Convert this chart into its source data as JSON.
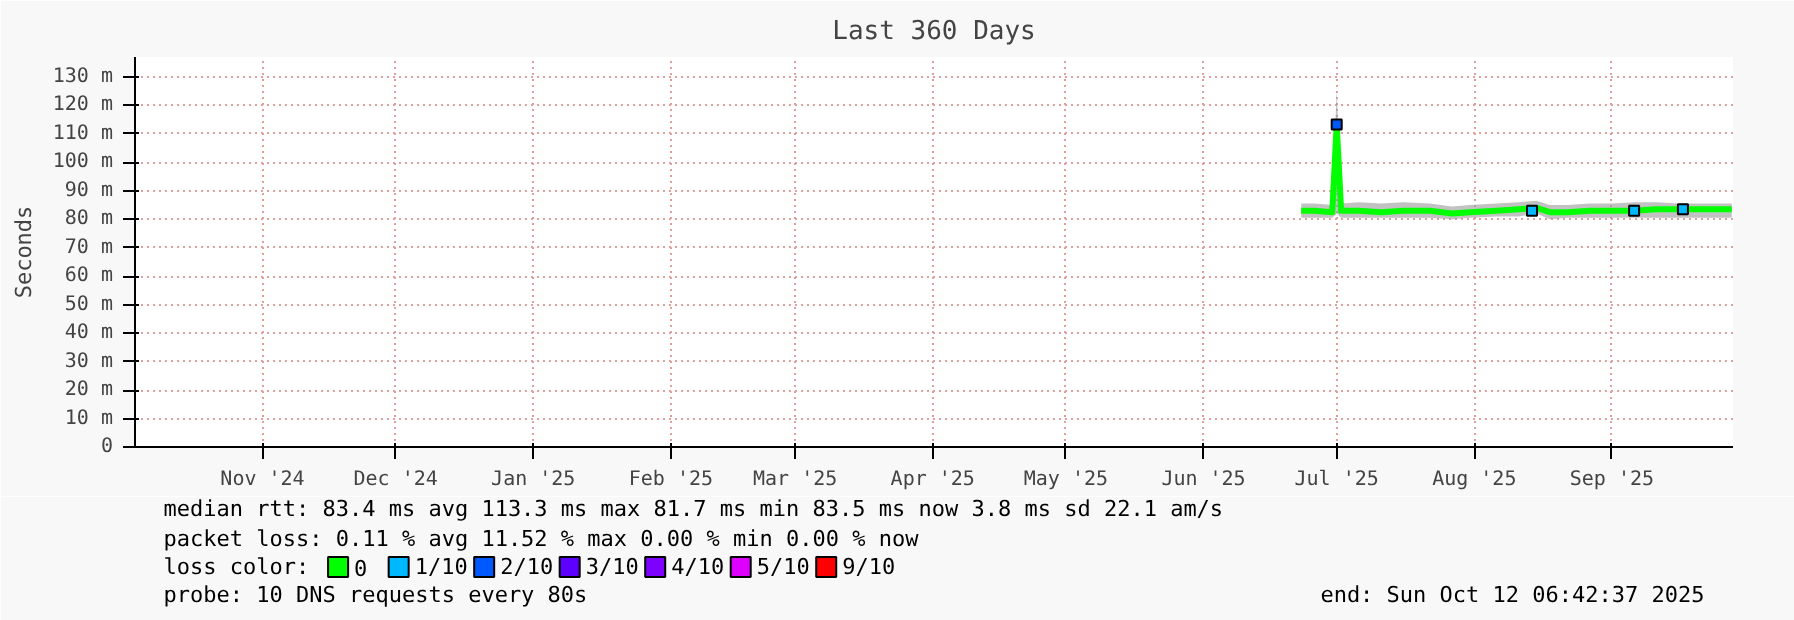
{
  "chart_data": {
    "type": "line",
    "title": "Last 360 Days",
    "ylabel": "Seconds",
    "xlim": [
      "2024-10-17T06:42",
      "2025-10-12T06:42"
    ],
    "xticks": [
      {
        "value": "2024-11-15",
        "label": "Nov '24"
      },
      {
        "value": "2024-12-15",
        "label": "Dec '24"
      },
      {
        "value": "2025-01-15",
        "label": "Jan '25"
      },
      {
        "value": "2025-02-15",
        "label": "Feb '25"
      },
      {
        "value": "2025-03-15",
        "label": "Mar '25"
      },
      {
        "value": "2025-04-15",
        "label": "Apr '25"
      },
      {
        "value": "2025-05-15",
        "label": "May '25"
      },
      {
        "value": "2025-06-15",
        "label": "Jun '25"
      },
      {
        "value": "2025-07-15",
        "label": "Jul '25"
      },
      {
        "value": "2025-08-15",
        "label": "Aug '25"
      },
      {
        "value": "2025-09-15",
        "label": "Sep '25"
      }
    ],
    "ylim": [
      0,
      137
    ],
    "yticks": [
      0,
      {
        "value": 10,
        "label": "10 m"
      },
      {
        "value": 20,
        "label": "20 m"
      },
      {
        "value": 30,
        "label": "30 m"
      },
      {
        "value": 40,
        "label": "40 m"
      },
      {
        "value": 50,
        "label": "50 m"
      },
      {
        "value": 60,
        "label": "60 m"
      },
      {
        "value": 70,
        "label": "70 m"
      },
      {
        "value": 80,
        "label": "80 m"
      },
      {
        "value": 90,
        "label": "90 m"
      },
      {
        "value": 100,
        "label": "100 m"
      },
      {
        "value": 110,
        "label": "110 m"
      },
      {
        "value": 120,
        "label": "120 m"
      },
      {
        "value": 130,
        "label": "130 m"
      }
    ],
    "grid": true,
    "legend": "bottom left",
    "legend_title": "loss color:",
    "series": [
      {
        "name": "0",
        "color": "#00ff00",
        "x": [
          "2025-07-07",
          "2025-07-10",
          "2025-07-14",
          "2025-07-15",
          "2025-07-16",
          "2025-07-20",
          "2025-07-25",
          "2025-07-30",
          "2025-08-05",
          "2025-08-10",
          "2025-08-14",
          "2025-08-20",
          "2025-08-25",
          "2025-08-29",
          "2025-09-01",
          "2025-09-05",
          "2025-09-10",
          "2025-09-15",
          "2025-09-20",
          "2025-09-25",
          "2025-09-30",
          "2025-10-05",
          "2025-10-12"
        ],
        "values": [
          83,
          83,
          82.5,
          113.3,
          83,
          83,
          82.5,
          83,
          83,
          82,
          82.5,
          83,
          83.5,
          84,
          82.5,
          82.5,
          83,
          83,
          83,
          83.5,
          83.5,
          83.5,
          83.5
        ],
        "lower": [
          80.5,
          80.5,
          80.5,
          82,
          80.5,
          80.5,
          80.5,
          80.5,
          80.5,
          80,
          80.5,
          81,
          81,
          82,
          80,
          80.5,
          80.5,
          80.5,
          80.5,
          80.5,
          80.5,
          80.5,
          80.5
        ],
        "upper": [
          85.5,
          85.5,
          85,
          125.6,
          85.5,
          86,
          85.5,
          86,
          85.5,
          84.5,
          85,
          85.5,
          86,
          86.5,
          85,
          85,
          85.5,
          85.5,
          86,
          86,
          85.5,
          85.5,
          85.5
        ]
      },
      {
        "name": "1/10",
        "type": "scatter",
        "marker": "square",
        "color": "#00b8ff",
        "x": [
          "2025-08-28",
          "2025-09-20",
          "2025-10-01"
        ],
        "values": [
          83,
          83,
          83.5
        ]
      },
      {
        "name": "2/10",
        "type": "scatter",
        "marker": "square",
        "color": "#0059ff",
        "x": [
          "2025-07-15"
        ],
        "values": [
          113.3
        ]
      },
      {
        "name": "3/10",
        "type": "scatter",
        "marker": "square",
        "color": "#5e00ff"
      },
      {
        "name": "4/10",
        "type": "scatter",
        "marker": "square",
        "color": "#7e00ff"
      },
      {
        "name": "5/10",
        "type": "scatter",
        "marker": "square",
        "color": "#dd00ff"
      },
      {
        "name": "9/10",
        "type": "scatter",
        "marker": "square",
        "color": "#ff0000"
      }
    ],
    "annotations": [
      "median rtt:  83.4 ms avg  113.3 ms max  81.7 ms min  83.5 ms now  3.8 ms sd  22.1   am/s",
      "packet loss: 0.11 % avg  11.52 % max  0.00 % min  0.00 % now",
      "probe:       10 DNS requests every 80s",
      "end: Sun Oct 12 06:42:37 2025"
    ]
  }
}
